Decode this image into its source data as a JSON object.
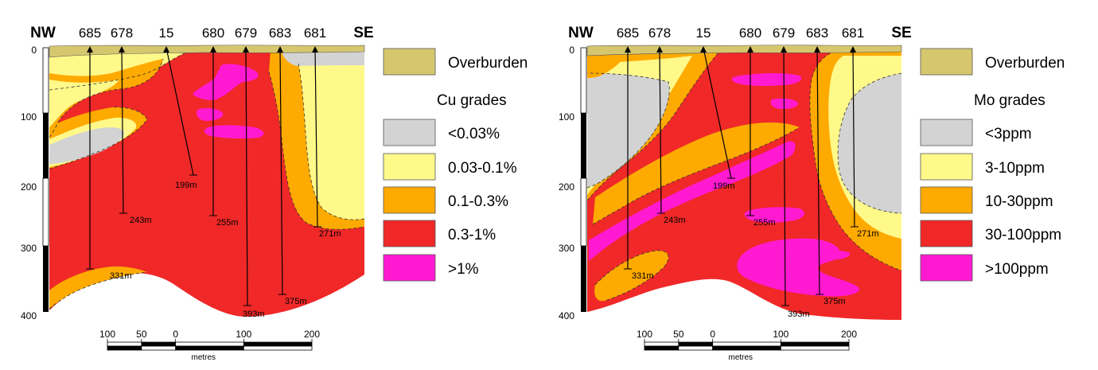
{
  "panels": [
    {
      "id": "cu",
      "nw_label": "NW",
      "se_label": "SE",
      "holes": [
        "685",
        "678",
        "15",
        "680",
        "679",
        "683",
        "681"
      ],
      "hole_depths": [
        "331m",
        "243m",
        "199m",
        "255m",
        "393m",
        "375m",
        "271m"
      ],
      "depth_ticks": [
        "0",
        "100",
        "200",
        "300",
        "400"
      ],
      "legend_title": "Cu grades",
      "overburden_label": "Overburden",
      "legend": [
        {
          "label": "<0.03%",
          "color": "#d3d3d3"
        },
        {
          "label": "0.03-0.1%",
          "color": "#fff98a"
        },
        {
          "label": "0.1-0.3%",
          "color": "#ffaa00"
        },
        {
          "label": "0.3-1%",
          "color": "#f02828"
        },
        {
          "label": ">1%",
          "color": "#ff1ad1"
        }
      ]
    },
    {
      "id": "mo",
      "nw_label": "NW",
      "se_label": "SE",
      "holes": [
        "685",
        "678",
        "15",
        "680",
        "679",
        "683",
        "681"
      ],
      "hole_depths": [
        "331m",
        "243m",
        "199m",
        "255m",
        "393m",
        "375m",
        "271m"
      ],
      "depth_ticks": [
        "0",
        "100",
        "200",
        "300",
        "400"
      ],
      "legend_title": "Mo grades",
      "overburden_label": "Overburden",
      "legend": [
        {
          "label": "<3ppm",
          "color": "#d3d3d3"
        },
        {
          "label": "3-10ppm",
          "color": "#fff98a"
        },
        {
          "label": "10-30ppm",
          "color": "#ffaa00"
        },
        {
          "label": "30-100ppm",
          "color": "#f02828"
        },
        {
          "label": ">100ppm",
          "color": "#ff1ad1"
        }
      ]
    }
  ],
  "scale": {
    "ticks": [
      "100",
      "50",
      "0",
      "100",
      "200"
    ],
    "unit": "metres"
  },
  "colors": {
    "overburden": "#d6c76e",
    "grey": "#d3d3d3",
    "yellow": "#fff98a",
    "orange": "#ffaa00",
    "red": "#f02828",
    "magenta": "#ff1ad1"
  }
}
